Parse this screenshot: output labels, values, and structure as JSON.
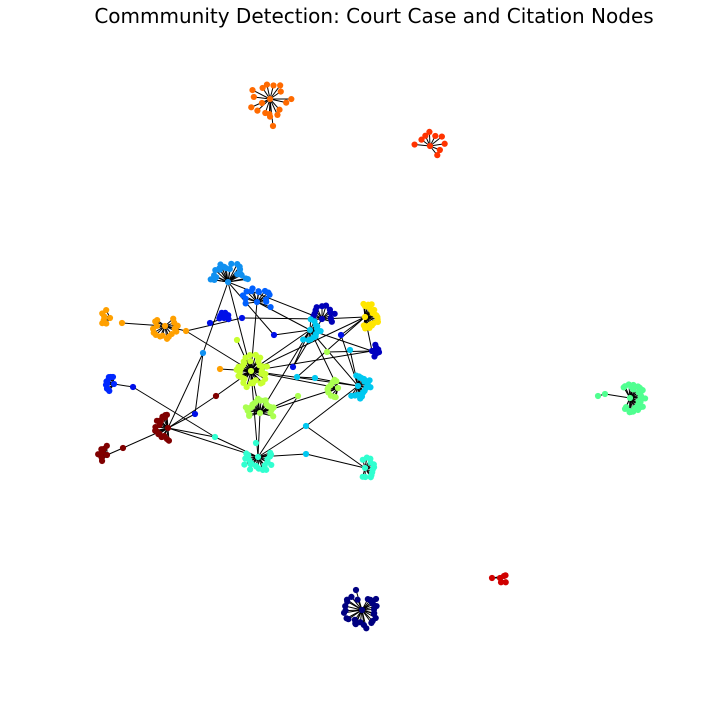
{
  "title": "Commmunity Detection: Court Case and Citation Nodes",
  "edge_color": "#000000",
  "communities": [
    {
      "id": "orange-top",
      "color": "#ff6a00"
    },
    {
      "id": "red-orange",
      "color": "#ff3300"
    },
    {
      "id": "sky-blue",
      "color": "#1090f0"
    },
    {
      "id": "royal-blue",
      "color": "#0060ff"
    },
    {
      "id": "mid-blue",
      "color": "#0010e8"
    },
    {
      "id": "navy-blue",
      "color": "#0000b8"
    },
    {
      "id": "amber",
      "color": "#ffa000"
    },
    {
      "id": "yellow",
      "color": "#ffe600"
    },
    {
      "id": "cyan",
      "color": "#00c8f0"
    },
    {
      "id": "deep-blue",
      "color": "#0000c0"
    },
    {
      "id": "left-blue",
      "color": "#0028ff"
    },
    {
      "id": "chartreuse",
      "color": "#c8ff30"
    },
    {
      "id": "lime",
      "color": "#aaff50"
    },
    {
      "id": "maroon",
      "color": "#800000"
    },
    {
      "id": "aquamarine",
      "color": "#30ffd0"
    },
    {
      "id": "sea-green",
      "color": "#50ff90"
    },
    {
      "id": "navy",
      "color": "#000080"
    },
    {
      "id": "crimson",
      "color": "#d00000"
    }
  ]
}
